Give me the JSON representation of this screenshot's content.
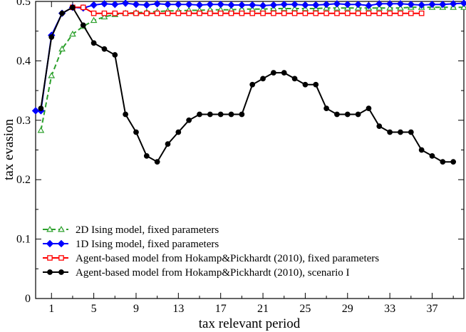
{
  "chart_data": {
    "type": "line",
    "title": "",
    "xlabel": "tax relevant period",
    "ylabel": "tax evasion",
    "xlim": [
      -0.5,
      40
    ],
    "ylim": [
      0,
      0.5
    ],
    "x_ticks": [
      1,
      5,
      9,
      13,
      17,
      21,
      25,
      29,
      33,
      37
    ],
    "y_ticks": [
      0,
      0.1,
      0.2,
      0.3,
      0.4,
      0.5
    ],
    "legend_position": "bottom-left",
    "series": [
      {
        "name": "2D Ising model, fixed parameters",
        "color": "#2ca02c",
        "marker": "triangle",
        "line_style": "dashed",
        "x": [
          0,
          1,
          2,
          3,
          4,
          5,
          6,
          7,
          8,
          9,
          10,
          11,
          12,
          13,
          14,
          15,
          16,
          17,
          18,
          19,
          20,
          21,
          22,
          23,
          24,
          25,
          26,
          27,
          28,
          29,
          30,
          31,
          32,
          33,
          34,
          35,
          36,
          37,
          38,
          39,
          40
        ],
        "values": [
          0.283,
          0.375,
          0.42,
          0.445,
          0.458,
          0.468,
          0.474,
          0.478,
          0.48,
          0.481,
          0.482,
          0.483,
          0.484,
          0.484,
          0.485,
          0.485,
          0.486,
          0.486,
          0.486,
          0.487,
          0.487,
          0.487,
          0.488,
          0.488,
          0.488,
          0.488,
          0.488,
          0.489,
          0.489,
          0.489,
          0.489,
          0.489,
          0.489,
          0.489,
          0.489,
          0.49,
          0.49,
          0.49,
          0.49,
          0.49,
          0.49
        ]
      },
      {
        "name": "1D Ising model, fixed parameters",
        "color": "#0000ff",
        "marker": "diamond",
        "line_style": "solid",
        "x": [
          -0.5,
          0,
          1,
          2,
          3,
          4,
          5,
          6,
          7,
          8,
          9,
          10,
          11,
          12,
          13,
          14,
          15,
          16,
          17,
          18,
          19,
          20,
          21,
          22,
          23,
          24,
          25,
          26,
          27,
          28,
          29,
          30,
          31,
          32,
          33,
          34,
          35,
          36,
          37,
          38,
          39,
          40
        ],
        "values": [
          0.316,
          0.316,
          0.443,
          0.48,
          0.49,
          0.489,
          0.494,
          0.496,
          0.495,
          0.497,
          0.495,
          0.494,
          0.496,
          0.495,
          0.495,
          0.495,
          0.494,
          0.495,
          0.495,
          0.494,
          0.494,
          0.494,
          0.493,
          0.494,
          0.495,
          0.495,
          0.494,
          0.494,
          0.495,
          0.496,
          0.495,
          0.495,
          0.493,
          0.496,
          0.496,
          0.496,
          0.495,
          0.494,
          0.495,
          0.495,
          0.496,
          0.497
        ]
      },
      {
        "name": "Agent-based model from Hokamp&Pickhardt (2010), fixed parameters",
        "color": "#ff0000",
        "marker": "square",
        "line_style": "solid",
        "x": [
          3,
          4,
          5,
          6,
          7,
          8,
          9,
          10,
          11,
          12,
          13,
          14,
          15,
          16,
          17,
          18,
          19,
          20,
          21,
          22,
          23,
          24,
          25,
          26,
          27,
          28,
          29,
          30,
          31,
          32,
          33,
          34,
          35,
          36
        ],
        "values": [
          0.49,
          0.49,
          0.48,
          0.48,
          0.48,
          0.48,
          0.48,
          0.48,
          0.48,
          0.48,
          0.48,
          0.48,
          0.48,
          0.48,
          0.48,
          0.48,
          0.48,
          0.48,
          0.48,
          0.48,
          0.48,
          0.48,
          0.48,
          0.48,
          0.48,
          0.48,
          0.48,
          0.48,
          0.48,
          0.48,
          0.48,
          0.48,
          0.48,
          0.48
        ]
      },
      {
        "name": "Agent-based model from Hokamp&Pickhardt (2010), scenario I",
        "color": "#000000",
        "marker": "circle",
        "line_style": "solid",
        "x": [
          0,
          1,
          2,
          3,
          4,
          5,
          6,
          7,
          8,
          9,
          10,
          11,
          12,
          13,
          14,
          15,
          16,
          17,
          18,
          19,
          20,
          21,
          22,
          23,
          24,
          25,
          26,
          27,
          28,
          29,
          30,
          31,
          32,
          33,
          34,
          35,
          36,
          37,
          38,
          39
        ],
        "values": [
          0.32,
          0.44,
          0.48,
          0.49,
          0.46,
          0.43,
          0.42,
          0.41,
          0.31,
          0.28,
          0.24,
          0.23,
          0.26,
          0.28,
          0.3,
          0.31,
          0.31,
          0.31,
          0.31,
          0.31,
          0.36,
          0.37,
          0.38,
          0.38,
          0.37,
          0.36,
          0.36,
          0.32,
          0.31,
          0.31,
          0.31,
          0.32,
          0.29,
          0.28,
          0.28,
          0.28,
          0.25,
          0.24,
          0.23,
          0.23
        ]
      }
    ]
  }
}
